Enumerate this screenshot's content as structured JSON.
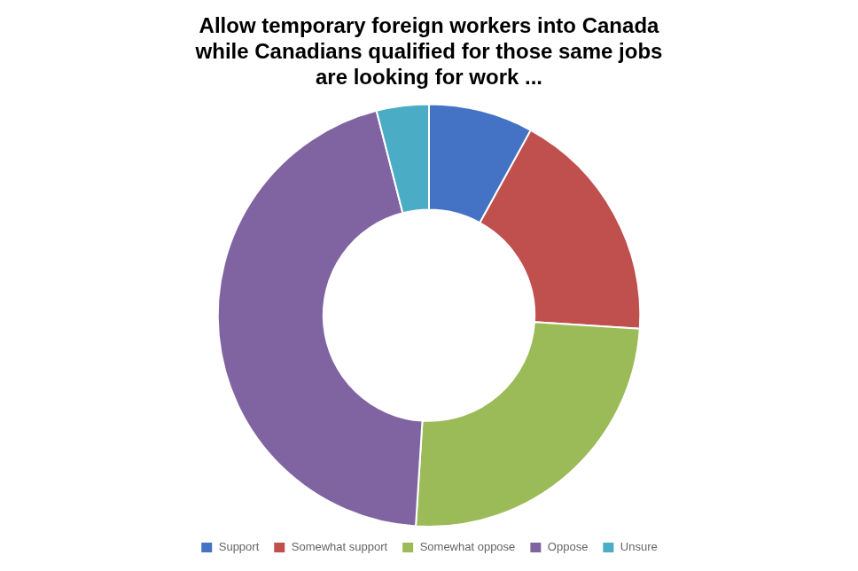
{
  "chart_data": {
    "type": "donut",
    "title": "Allow temporary foreign workers into Canada\nwhile Canadians qualified for those same jobs\nare looking for work ...",
    "categories": [
      "Support",
      "Somewhat support",
      "Somewhat oppose",
      "Oppose",
      "Unsure"
    ],
    "values": [
      8,
      18,
      25,
      45,
      4
    ],
    "colors": [
      "#4472C4",
      "#C0504D",
      "#9BBB59",
      "#8064A2",
      "#4BACC6"
    ],
    "legend": "bottom"
  }
}
